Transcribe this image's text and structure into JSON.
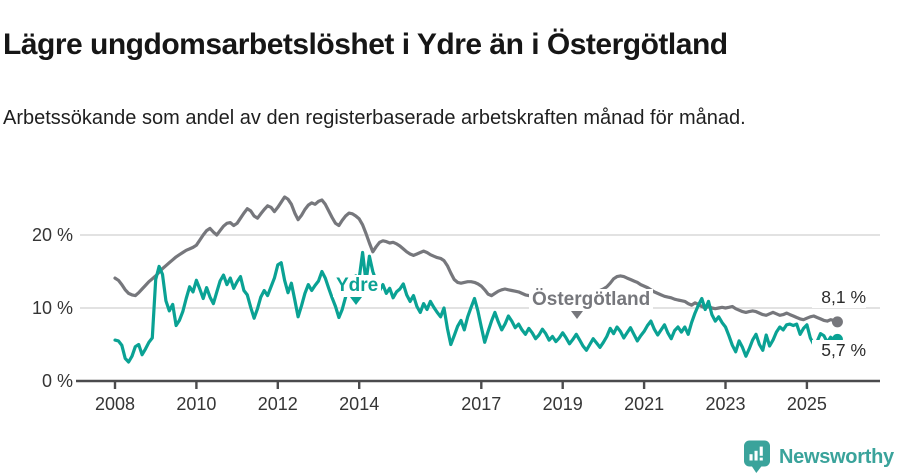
{
  "header": {
    "title": "Lägre ungdomsarbetslöshet i Ydre än i Östergötland",
    "subtitle": "Arbetssökande som andel av den registerbaserade arbetskraften månad för månad."
  },
  "colors": {
    "accent_teal": "#0aa294",
    "series_gray": "#76777c",
    "grid": "#d9d9d9",
    "axis": "#4b4b4d",
    "logo_teal": "#3aa39b",
    "title_text": "#161616",
    "tick_text": "#353535"
  },
  "footer": {
    "brand": "Newsworthy",
    "logo_icon": "bar-chart-pin-icon"
  },
  "chart_data": {
    "type": "line",
    "title": "Lägre ungdomsarbetslöshet i Ydre än i Östergötland",
    "subtitle": "Arbetssökande som andel av den registerbaserade arbetskraften månad för månad.",
    "x_unit": "month",
    "x_range": "2008-01 to 2025-10, monthly",
    "ylim": [
      0,
      26.5
    ],
    "grid": "horizontal-only",
    "legend_position": "inline-annotations",
    "y_ticks": [
      {
        "value": 0,
        "label": "0 %"
      },
      {
        "value": 10,
        "label": "10 %"
      },
      {
        "value": 20,
        "label": "20 %"
      }
    ],
    "x_ticks": [
      {
        "year": 2008,
        "label": "2008"
      },
      {
        "year": 2010,
        "label": "2010"
      },
      {
        "year": 2012,
        "label": "2012"
      },
      {
        "year": 2014,
        "label": "2014"
      },
      {
        "year": 2017,
        "label": "2017"
      },
      {
        "year": 2019,
        "label": "2019"
      },
      {
        "year": 2021,
        "label": "2021"
      },
      {
        "year": 2023,
        "label": "2023"
      },
      {
        "year": 2025,
        "label": "2025"
      }
    ],
    "series": [
      {
        "name": "Östergötland",
        "color": "#76777c",
        "end_label": "8,1 %",
        "end_value": 8.1,
        "values": [
          14.1,
          13.8,
          13.2,
          12.5,
          12.0,
          11.8,
          11.7,
          12.1,
          12.6,
          13.1,
          13.6,
          14.0,
          14.4,
          14.9,
          15.4,
          15.8,
          16.2,
          16.6,
          17.0,
          17.3,
          17.6,
          17.9,
          18.1,
          18.3,
          18.6,
          19.3,
          20.0,
          20.6,
          20.9,
          20.4,
          20.0,
          20.6,
          21.2,
          21.6,
          21.7,
          21.3,
          21.6,
          22.3,
          23.0,
          23.6,
          23.3,
          22.6,
          22.3,
          22.9,
          23.5,
          24.0,
          23.8,
          23.2,
          23.8,
          24.5,
          25.2,
          24.9,
          24.2,
          23.0,
          22.1,
          22.7,
          23.5,
          24.1,
          24.4,
          24.2,
          24.6,
          24.8,
          24.2,
          23.3,
          22.4,
          21.6,
          21.3,
          22.0,
          22.6,
          23.0,
          22.9,
          22.6,
          22.2,
          21.4,
          20.2,
          18.9,
          17.7,
          18.4,
          19.0,
          19.2,
          19.1,
          18.9,
          19.0,
          18.8,
          18.5,
          18.1,
          17.7,
          17.4,
          17.2,
          17.4,
          17.6,
          17.8,
          17.6,
          17.3,
          17.1,
          16.9,
          16.8,
          16.5,
          15.8,
          14.8,
          13.9,
          13.5,
          13.4,
          13.5,
          13.6,
          13.6,
          13.5,
          13.3,
          13.0,
          12.5,
          11.9,
          11.7,
          12.0,
          12.3,
          12.5,
          12.6,
          12.5,
          12.4,
          12.3,
          12.2,
          12.0,
          11.8,
          11.7,
          11.8,
          11.9,
          12.0,
          12.1,
          12.2,
          12.1,
          12.0,
          11.9,
          11.9,
          11.8,
          11.9,
          12.0,
          12.1,
          12.2,
          12.1,
          12.0,
          12.0,
          12.1,
          12.2,
          12.3,
          12.4,
          12.6,
          12.9,
          13.4,
          14.0,
          14.3,
          14.4,
          14.3,
          14.1,
          13.9,
          13.7,
          13.5,
          13.2,
          13.0,
          12.8,
          12.5,
          12.2,
          12.0,
          11.8,
          11.6,
          11.5,
          11.4,
          11.2,
          11.1,
          11.0,
          10.9,
          10.6,
          10.4,
          10.7,
          10.5,
          10.2,
          10.0,
          10.2,
          10.0,
          9.9,
          10.0,
          10.1,
          10.0,
          10.1,
          10.2,
          9.9,
          9.7,
          9.5,
          9.4,
          9.5,
          9.6,
          9.5,
          9.3,
          9.1,
          9.0,
          9.2,
          9.4,
          9.2,
          9.0,
          9.1,
          9.3,
          9.1,
          8.9,
          8.7,
          8.5,
          8.4,
          8.6,
          8.8,
          8.9,
          8.7,
          8.5,
          8.3,
          8.2,
          8.4,
          8.3,
          8.1
        ]
      },
      {
        "name": "Ydre",
        "color": "#0aa294",
        "end_label": "5,7 %",
        "end_value": 5.7,
        "values": [
          5.6,
          5.5,
          4.9,
          3.1,
          2.6,
          3.4,
          4.7,
          5.0,
          3.6,
          4.4,
          5.3,
          5.9,
          13.9,
          15.7,
          14.6,
          11.0,
          9.6,
          10.5,
          7.6,
          8.3,
          9.5,
          11.3,
          12.9,
          12.2,
          13.8,
          12.6,
          11.3,
          12.8,
          11.5,
          10.6,
          12.2,
          13.7,
          14.5,
          13.2,
          14.1,
          12.7,
          13.6,
          14.3,
          12.4,
          11.8,
          10.1,
          8.6,
          9.9,
          11.5,
          12.4,
          11.7,
          12.9,
          14.1,
          15.9,
          16.2,
          13.8,
          12.1,
          13.4,
          11.1,
          8.8,
          10.3,
          12.0,
          13.2,
          12.4,
          13.1,
          13.7,
          15.0,
          14.1,
          12.7,
          11.4,
          10.2,
          8.7,
          9.8,
          11.5,
          12.7,
          13.9,
          14.4,
          14.1,
          17.6,
          13.6,
          17.1,
          15.0,
          13.7,
          12.4,
          13.2,
          12.0,
          12.7,
          11.4,
          12.2,
          12.6,
          13.3,
          11.8,
          10.9,
          11.7,
          10.2,
          9.4,
          10.6,
          9.8,
          10.9,
          10.1,
          9.4,
          8.8,
          10.0,
          7.2,
          5.0,
          6.2,
          7.5,
          8.3,
          7.0,
          8.8,
          10.1,
          11.3,
          9.6,
          7.4,
          5.3,
          6.8,
          8.2,
          9.4,
          8.1,
          7.0,
          7.8,
          8.9,
          8.2,
          7.3,
          7.8,
          7.0,
          6.4,
          7.2,
          6.6,
          5.8,
          6.3,
          7.1,
          6.5,
          5.6,
          6.1,
          5.4,
          5.9,
          6.6,
          5.9,
          5.1,
          5.7,
          6.4,
          5.6,
          4.8,
          4.2,
          5.0,
          5.8,
          5.2,
          4.6,
          5.3,
          6.1,
          7.2,
          6.5,
          7.4,
          6.8,
          5.9,
          6.6,
          7.3,
          6.4,
          5.5,
          6.2,
          6.8,
          7.6,
          8.2,
          7.1,
          6.3,
          7.0,
          7.7,
          6.6,
          5.8,
          6.9,
          7.4,
          6.7,
          7.4,
          6.4,
          8.0,
          9.3,
          10.4,
          11.3,
          9.8,
          10.9,
          9.1,
          8.2,
          8.8,
          8.0,
          7.4,
          6.2,
          4.9,
          4.0,
          5.5,
          4.6,
          3.4,
          4.4,
          5.6,
          6.4,
          5.0,
          4.2,
          6.3,
          4.8,
          5.6,
          6.7,
          7.4,
          7.0,
          7.7,
          7.8,
          7.6,
          7.8,
          6.4,
          7.2,
          7.7,
          5.9,
          5.0,
          5.4,
          6.5,
          6.2,
          5.3,
          6.0,
          5.5,
          5.7
        ]
      }
    ]
  }
}
